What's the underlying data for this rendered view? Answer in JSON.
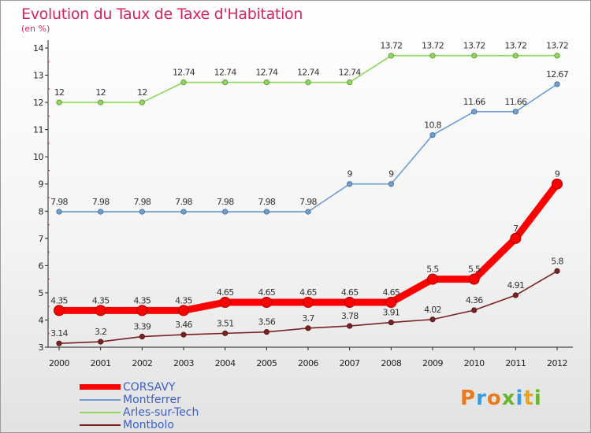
{
  "title": "Evolution du Taux de Taxe d'Habitation",
  "subtitle": "(en %)",
  "logo": {
    "text": "Proxiti",
    "colors": [
      "#e87b1e",
      "#3a9be0",
      "#e87b1e",
      "#6ab52e",
      "#3a9be0",
      "#e8a21e",
      "#6ab52e"
    ]
  },
  "chart_data": {
    "type": "line",
    "title": "Evolution du Taux de Taxe d'Habitation",
    "ylabel": "(en %)",
    "xlabel": "",
    "ylim": [
      3,
      14
    ],
    "yticks": [
      "3",
      "4",
      "5",
      "6",
      "7",
      "8",
      "9",
      "10",
      "11",
      "12",
      "13",
      "14"
    ],
    "grid": false,
    "legend_position": "bottom-left",
    "categories": [
      "2000",
      "2001",
      "2002",
      "2003",
      "2004",
      "2005",
      "2006",
      "2007",
      "2008",
      "2009",
      "2010",
      "2011",
      "2012"
    ],
    "series": [
      {
        "name": "CORSAVY",
        "color": "#ff0000",
        "emphasis": true,
        "values": [
          4.35,
          4.35,
          4.35,
          4.35,
          4.65,
          4.65,
          4.65,
          4.65,
          4.65,
          5.5,
          5.5,
          7,
          9
        ],
        "labels": [
          "4.35",
          "4.35",
          "4.35",
          "4.35",
          "4.65",
          "4.65",
          "4.65",
          "4.65",
          "4.65",
          "5.5",
          "5.5",
          "7",
          "9"
        ]
      },
      {
        "name": "Montferrer",
        "color": "#6d9fd3",
        "emphasis": false,
        "values": [
          7.98,
          7.98,
          7.98,
          7.98,
          7.98,
          7.98,
          7.98,
          9,
          9,
          10.8,
          11.66,
          11.66,
          12.67
        ],
        "labels": [
          "7.98",
          "7.98",
          "7.98",
          "7.98",
          "7.98",
          "7.98",
          "7.98",
          "9",
          "9",
          "10.8",
          "11.66",
          "11.66",
          "12.67"
        ]
      },
      {
        "name": "Arles-sur-Tech",
        "color": "#8ed85a",
        "emphasis": false,
        "values": [
          12,
          12,
          12,
          12.74,
          12.74,
          12.74,
          12.74,
          12.74,
          13.72,
          13.72,
          13.72,
          13.72,
          13.72
        ],
        "labels": [
          "12",
          "12",
          "12",
          "12.74",
          "12.74",
          "12.74",
          "12.74",
          "12.74",
          "13.72",
          "13.72",
          "13.72",
          "13.72",
          "13.72"
        ]
      },
      {
        "name": "Montbolo",
        "color": "#7a2222",
        "emphasis": false,
        "values": [
          3.14,
          3.2,
          3.39,
          3.46,
          3.51,
          3.56,
          3.7,
          3.78,
          3.91,
          4.02,
          4.36,
          4.91,
          5.8
        ],
        "labels": [
          "3.14",
          "3.2",
          "3.39",
          "3.46",
          "3.51",
          "3.56",
          "3.7",
          "3.78",
          "3.91",
          "4.02",
          "4.36",
          "4.91",
          "5.8"
        ]
      }
    ]
  }
}
